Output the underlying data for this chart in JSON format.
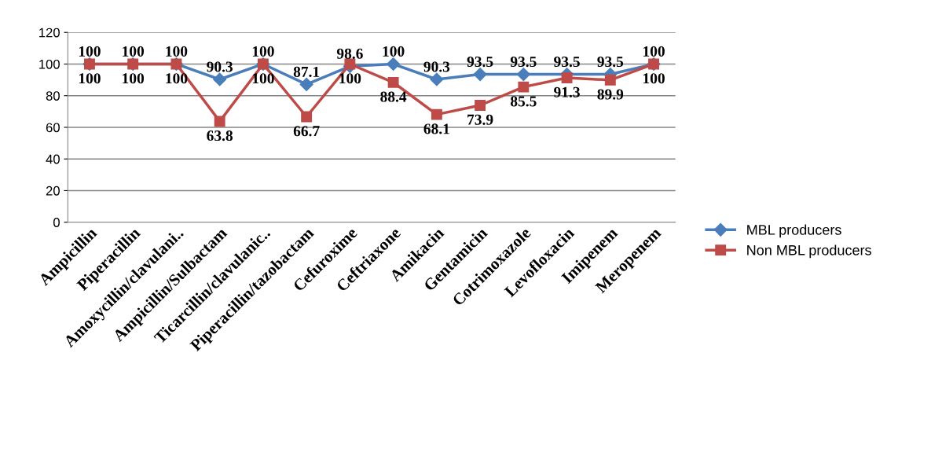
{
  "chart_data": {
    "type": "line",
    "categories": [
      "Ampicillin",
      "Piperacillin",
      "Amoxycillin/clavulani..",
      "Ampicillin/Sulbactam",
      "Ticarcillin/clavulanic..",
      "Piperacillin/tazobactam",
      "Cefuroxime",
      "Ceftriaxone",
      "Amikacin",
      "Gentamicin",
      "Cotrimoxazole",
      "Levofloxacin",
      "Imipenem",
      "Meropenem"
    ],
    "series": [
      {
        "name": "MBL producers",
        "color": "#4a7ebb",
        "marker": "diamond",
        "values": [
          100,
          100,
          100,
          90.3,
          100,
          87.1,
          98.6,
          100,
          90.3,
          93.5,
          93.5,
          93.5,
          93.5,
          100
        ]
      },
      {
        "name": "Non MBL producers",
        "color": "#be4b48",
        "marker": "square",
        "values": [
          100,
          100,
          100,
          63.8,
          100,
          66.7,
          100,
          88.4,
          68.1,
          73.9,
          85.5,
          91.3,
          89.9,
          100
        ]
      }
    ],
    "ylim": [
      0,
      120
    ],
    "yticks": [
      0,
      20,
      40,
      60,
      80,
      100,
      120
    ],
    "grid": "y",
    "legend": "right",
    "data_labels": true
  }
}
